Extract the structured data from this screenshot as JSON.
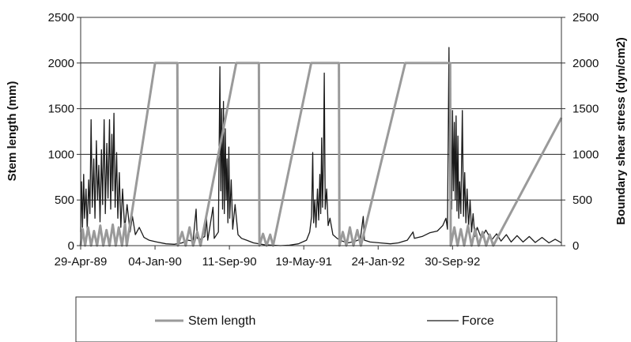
{
  "chart_data": {
    "type": "line",
    "title": "",
    "xlabel": "",
    "ylabel": "Stem length (mm)",
    "y2label": "Boundary shear stress (dyn/cm2)",
    "ylim": [
      0,
      2500
    ],
    "y2lim": [
      0,
      2500
    ],
    "yticks": [
      0,
      500,
      1000,
      1500,
      2000,
      2500
    ],
    "y2ticks": [
      0,
      500,
      1000,
      1500,
      2000,
      2500
    ],
    "xlim": [
      "1989-04-29",
      "1993-10-01"
    ],
    "xticks": [
      {
        "date": "1989-04-29",
        "label": "29-Apr-89"
      },
      {
        "date": "1990-01-04",
        "label": "04-Jan-90"
      },
      {
        "date": "1990-09-11",
        "label": "11-Sep-90"
      },
      {
        "date": "1991-05-19",
        "label": "19-May-91"
      },
      {
        "date": "1992-01-24",
        "label": "24-Jan-92"
      },
      {
        "date": "1992-09-30",
        "label": "30-Sep-92"
      }
    ],
    "grid": "horizontal",
    "legend_position": "bottom",
    "series": [
      {
        "name": "Stem length",
        "color": "#9a9a9a",
        "axis": "left",
        "points": [
          [
            "1989-04-29",
            0
          ],
          [
            "1989-05-06",
            180
          ],
          [
            "1989-05-14",
            0
          ],
          [
            "1989-05-24",
            200
          ],
          [
            "1989-06-03",
            0
          ],
          [
            "1989-06-13",
            160
          ],
          [
            "1989-06-23",
            0
          ],
          [
            "1989-07-04",
            220
          ],
          [
            "1989-07-14",
            0
          ],
          [
            "1989-07-25",
            170
          ],
          [
            "1989-08-04",
            0
          ],
          [
            "1989-08-15",
            230
          ],
          [
            "1989-08-25",
            0
          ],
          [
            "1989-09-04",
            200
          ],
          [
            "1989-09-15",
            0
          ],
          [
            "1989-09-25",
            240
          ],
          [
            "1989-10-01",
            0
          ],
          [
            "1990-01-04",
            2000
          ],
          [
            "1990-03-20",
            2000
          ],
          [
            "1990-03-22",
            0
          ],
          [
            "1990-04-05",
            150
          ],
          [
            "1990-04-17",
            0
          ],
          [
            "1990-04-30",
            200
          ],
          [
            "1990-05-12",
            0
          ],
          [
            "1990-05-26",
            150
          ],
          [
            "1990-06-06",
            0
          ],
          [
            "1990-10-04",
            2000
          ],
          [
            "1990-12-19",
            2000
          ],
          [
            "1990-12-21",
            0
          ],
          [
            "1991-01-02",
            130
          ],
          [
            "1991-01-14",
            0
          ],
          [
            "1991-01-26",
            120
          ],
          [
            "1991-02-05",
            0
          ],
          [
            "1991-06-13",
            2000
          ],
          [
            "1991-09-14",
            2000
          ],
          [
            "1991-09-16",
            0
          ],
          [
            "1991-09-27",
            150
          ],
          [
            "1991-10-09",
            0
          ],
          [
            "1991-10-21",
            200
          ],
          [
            "1991-11-02",
            0
          ],
          [
            "1991-11-15",
            170
          ],
          [
            "1991-11-27",
            0
          ],
          [
            "1992-04-24",
            2000
          ],
          [
            "1992-09-22",
            2000
          ],
          [
            "1992-09-24",
            0
          ],
          [
            "1992-10-06",
            200
          ],
          [
            "1992-10-17",
            0
          ],
          [
            "1992-10-28",
            180
          ],
          [
            "1992-11-08",
            0
          ],
          [
            "1992-11-21",
            220
          ],
          [
            "1992-12-03",
            0
          ],
          [
            "1992-12-15",
            180
          ],
          [
            "1992-12-27",
            0
          ],
          [
            "1993-01-09",
            150
          ],
          [
            "1993-01-21",
            0
          ],
          [
            "1993-02-02",
            120
          ],
          [
            "1993-02-14",
            0
          ],
          [
            "1993-10-01",
            1400
          ]
        ]
      },
      {
        "name": "Force",
        "color": "#1a1a1a",
        "axis": "right",
        "points": [
          [
            "1989-04-29",
            150
          ],
          [
            "1989-05-02",
            700
          ],
          [
            "1989-05-05",
            200
          ],
          [
            "1989-05-09",
            780
          ],
          [
            "1989-05-12",
            300
          ],
          [
            "1989-05-17",
            620
          ],
          [
            "1989-05-21",
            180
          ],
          [
            "1989-05-26",
            720
          ],
          [
            "1989-05-30",
            350
          ],
          [
            "1989-06-03",
            1380
          ],
          [
            "1989-06-07",
            420
          ],
          [
            "1989-06-12",
            950
          ],
          [
            "1989-06-16",
            300
          ],
          [
            "1989-06-21",
            1150
          ],
          [
            "1989-06-25",
            500
          ],
          [
            "1989-06-29",
            880
          ],
          [
            "1989-07-03",
            260
          ],
          [
            "1989-07-08",
            1050
          ],
          [
            "1989-07-12",
            450
          ],
          [
            "1989-07-17",
            1380
          ],
          [
            "1989-07-21",
            350
          ],
          [
            "1989-07-26",
            1120
          ],
          [
            "1989-07-30",
            520
          ],
          [
            "1989-08-04",
            1380
          ],
          [
            "1989-08-08",
            400
          ],
          [
            "1989-08-12",
            1220
          ],
          [
            "1989-08-15",
            600
          ],
          [
            "1989-08-19",
            1450
          ],
          [
            "1989-08-23",
            420
          ],
          [
            "1989-08-28",
            1020
          ],
          [
            "1989-09-01",
            300
          ],
          [
            "1989-09-06",
            800
          ],
          [
            "1989-09-11",
            200
          ],
          [
            "1989-09-17",
            620
          ],
          [
            "1989-09-24",
            180
          ],
          [
            "1989-10-02",
            450
          ],
          [
            "1989-10-12",
            150
          ],
          [
            "1989-10-20",
            320
          ],
          [
            "1989-10-30",
            120
          ],
          [
            "1989-11-12",
            200
          ],
          [
            "1989-11-28",
            90
          ],
          [
            "1989-12-15",
            60
          ],
          [
            "1990-01-10",
            40
          ],
          [
            "1990-02-10",
            20
          ],
          [
            "1990-03-10",
            15
          ],
          [
            "1990-04-05",
            30
          ],
          [
            "1990-04-25",
            60
          ],
          [
            "1990-05-12",
            50
          ],
          [
            "1990-05-22",
            400
          ],
          [
            "1990-05-26",
            80
          ],
          [
            "1990-06-06",
            70
          ],
          [
            "1990-06-20",
            100
          ],
          [
            "1990-06-26",
            300
          ],
          [
            "1990-06-30",
            60
          ],
          [
            "1990-07-18",
            420
          ],
          [
            "1990-07-22",
            80
          ],
          [
            "1990-08-05",
            150
          ],
          [
            "1990-08-10",
            1960
          ],
          [
            "1990-08-13",
            600
          ],
          [
            "1990-08-16",
            1500
          ],
          [
            "1990-08-19",
            400
          ],
          [
            "1990-08-22",
            1580
          ],
          [
            "1990-08-25",
            350
          ],
          [
            "1990-08-28",
            1280
          ],
          [
            "1990-08-31",
            500
          ],
          [
            "1990-09-03",
            950
          ],
          [
            "1990-09-06",
            250
          ],
          [
            "1990-09-09",
            1080
          ],
          [
            "1990-09-12",
            300
          ],
          [
            "1990-09-17",
            720
          ],
          [
            "1990-09-22",
            180
          ],
          [
            "1990-09-30",
            450
          ],
          [
            "1990-10-10",
            120
          ],
          [
            "1990-10-22",
            80
          ],
          [
            "1990-11-08",
            60
          ],
          [
            "1990-12-01",
            30
          ],
          [
            "1991-01-05",
            10
          ],
          [
            "1991-02-01",
            5
          ],
          [
            "1991-03-01",
            0
          ],
          [
            "1991-04-01",
            5
          ],
          [
            "1991-05-01",
            20
          ],
          [
            "1991-05-28",
            60
          ],
          [
            "1991-06-08",
            150
          ],
          [
            "1991-06-14",
            320
          ],
          [
            "1991-06-18",
            1020
          ],
          [
            "1991-06-21",
            250
          ],
          [
            "1991-06-25",
            500
          ],
          [
            "1991-06-29",
            200
          ],
          [
            "1991-07-04",
            620
          ],
          [
            "1991-07-08",
            280
          ],
          [
            "1991-07-12",
            780
          ],
          [
            "1991-07-15",
            350
          ],
          [
            "1991-07-18",
            1180
          ],
          [
            "1991-07-21",
            420
          ],
          [
            "1991-07-24",
            900
          ],
          [
            "1991-07-27",
            1890
          ],
          [
            "1991-07-30",
            400
          ],
          [
            "1991-08-04",
            620
          ],
          [
            "1991-08-09",
            220
          ],
          [
            "1991-08-15",
            300
          ],
          [
            "1991-08-25",
            120
          ],
          [
            "1991-09-08",
            80
          ],
          [
            "1991-09-25",
            50
          ],
          [
            "1991-10-15",
            30
          ],
          [
            "1991-11-05",
            45
          ],
          [
            "1991-11-25",
            70
          ],
          [
            "1991-12-05",
            320
          ],
          [
            "1991-12-09",
            60
          ],
          [
            "1991-12-28",
            40
          ],
          [
            "1992-01-30",
            30
          ],
          [
            "1992-03-05",
            20
          ],
          [
            "1992-04-01",
            30
          ],
          [
            "1992-05-01",
            60
          ],
          [
            "1992-05-20",
            150
          ],
          [
            "1992-05-25",
            80
          ],
          [
            "1992-06-20",
            100
          ],
          [
            "1992-07-15",
            140
          ],
          [
            "1992-08-10",
            160
          ],
          [
            "1992-08-28",
            220
          ],
          [
            "1992-09-08",
            300
          ],
          [
            "1992-09-13",
            180
          ],
          [
            "1992-09-18",
            2170
          ],
          [
            "1992-09-21",
            500
          ],
          [
            "1992-09-24",
            1500
          ],
          [
            "1992-09-27",
            400
          ],
          [
            "1992-09-30",
            1480
          ],
          [
            "1992-10-03",
            600
          ],
          [
            "1992-10-06",
            1350
          ],
          [
            "1992-10-09",
            500
          ],
          [
            "1992-10-12",
            1420
          ],
          [
            "1992-10-15",
            380
          ],
          [
            "1992-10-18",
            1200
          ],
          [
            "1992-10-21",
            300
          ],
          [
            "1992-10-24",
            700
          ],
          [
            "1992-10-28",
            350
          ],
          [
            "1992-11-02",
            1480
          ],
          [
            "1992-11-06",
            320
          ],
          [
            "1992-11-10",
            800
          ],
          [
            "1992-11-14",
            250
          ],
          [
            "1992-11-18",
            620
          ],
          [
            "1992-11-23",
            200
          ],
          [
            "1992-11-28",
            500
          ],
          [
            "1992-12-03",
            150
          ],
          [
            "1992-12-08",
            350
          ],
          [
            "1992-12-14",
            100
          ],
          [
            "1992-12-22",
            200
          ],
          [
            "1993-01-05",
            80
          ],
          [
            "1993-01-20",
            170
          ],
          [
            "1993-02-08",
            60
          ],
          [
            "1993-02-25",
            130
          ],
          [
            "1993-03-12",
            50
          ],
          [
            "1993-03-30",
            120
          ],
          [
            "1993-04-15",
            40
          ],
          [
            "1993-05-05",
            110
          ],
          [
            "1993-05-25",
            40
          ],
          [
            "1993-06-15",
            100
          ],
          [
            "1993-07-05",
            35
          ],
          [
            "1993-07-28",
            90
          ],
          [
            "1993-08-20",
            30
          ],
          [
            "1993-09-10",
            70
          ],
          [
            "1993-10-01",
            30
          ]
        ]
      }
    ]
  }
}
